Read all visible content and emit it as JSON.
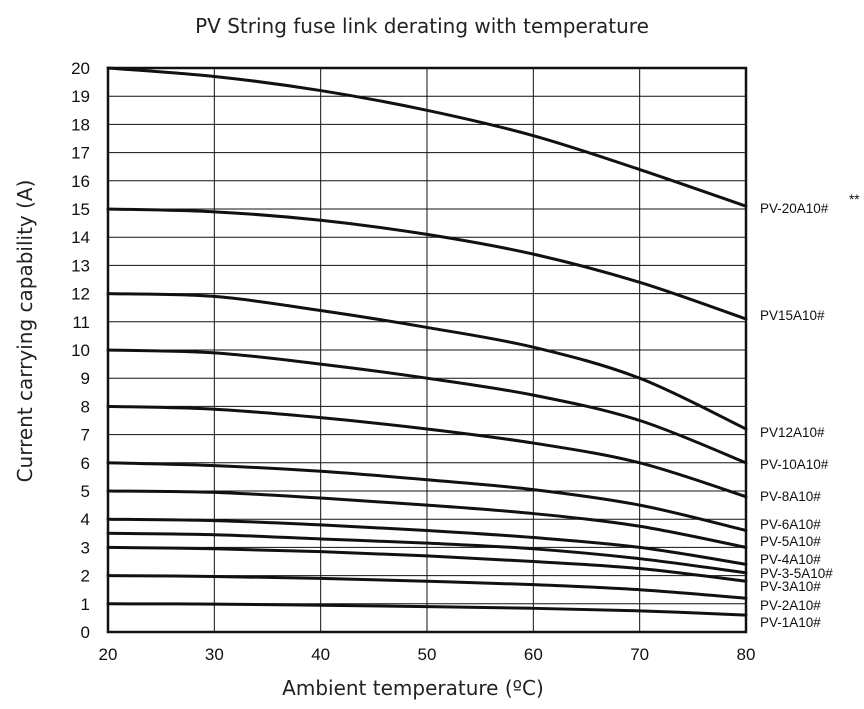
{
  "chart_data": {
    "type": "line",
    "title": "PV String fuse link derating with temperature",
    "xlabel": "Ambient temperature (ºC)",
    "ylabel": "Current carrying capability (A)",
    "xlim": [
      20,
      80
    ],
    "ylim": [
      0,
      20
    ],
    "x_ticks": [
      20,
      30,
      40,
      50,
      60,
      70,
      80
    ],
    "y_ticks": [
      0,
      1,
      2,
      3,
      4,
      5,
      6,
      7,
      8,
      9,
      10,
      11,
      12,
      13,
      14,
      15,
      16,
      17,
      18,
      19,
      20
    ],
    "grid": true,
    "legend": "inline-right",
    "x": [
      20,
      30,
      40,
      50,
      60,
      70,
      80
    ],
    "series": [
      {
        "name": "PV-20A10#",
        "note": "**",
        "values": [
          20,
          19.7,
          19.2,
          18.5,
          17.6,
          16.4,
          15.1
        ]
      },
      {
        "name": "PV15A10#",
        "values": [
          15,
          14.9,
          14.6,
          14.1,
          13.4,
          12.4,
          11.1
        ]
      },
      {
        "name": "PV12A10#",
        "values": [
          12,
          11.9,
          11.4,
          10.8,
          10.1,
          9.0,
          7.2
        ]
      },
      {
        "name": "PV-10A10#",
        "values": [
          10,
          9.9,
          9.5,
          9.0,
          8.4,
          7.5,
          6.0
        ]
      },
      {
        "name": "PV-8A10#",
        "values": [
          8,
          7.9,
          7.6,
          7.2,
          6.7,
          6.0,
          4.8
        ]
      },
      {
        "name": "PV-6A10#",
        "values": [
          6,
          5.9,
          5.7,
          5.4,
          5.05,
          4.5,
          3.6
        ]
      },
      {
        "name": "PV-5A10#",
        "values": [
          5,
          4.95,
          4.75,
          4.5,
          4.2,
          3.75,
          3.0
        ]
      },
      {
        "name": "PV-4A10#",
        "values": [
          4,
          3.95,
          3.8,
          3.6,
          3.35,
          3.0,
          2.4
        ]
      },
      {
        "name": "PV-3-5A10#",
        "values": [
          3.5,
          3.45,
          3.3,
          3.15,
          2.95,
          2.6,
          2.1
        ]
      },
      {
        "name": "PV-3A10#",
        "values": [
          3,
          2.95,
          2.85,
          2.7,
          2.5,
          2.25,
          1.8
        ]
      },
      {
        "name": "PV-2A10#",
        "values": [
          2,
          1.97,
          1.9,
          1.8,
          1.68,
          1.5,
          1.2
        ]
      },
      {
        "name": "PV-1A10#",
        "values": [
          1,
          0.99,
          0.95,
          0.9,
          0.84,
          0.75,
          0.6
        ]
      }
    ]
  }
}
